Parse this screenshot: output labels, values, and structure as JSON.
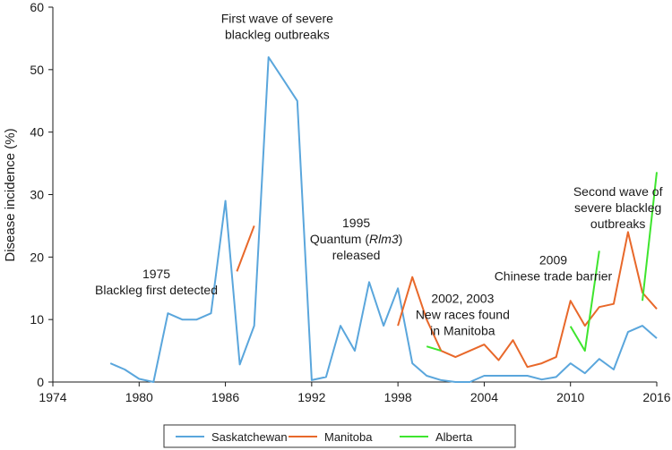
{
  "chart_data": {
    "type": "line",
    "title": "",
    "xlabel": "",
    "ylabel": "Disease incidence (%)",
    "xlim": [
      1974,
      2016
    ],
    "ylim": [
      0,
      60
    ],
    "x_ticks": [
      "1974",
      "1980",
      "1986",
      "1992",
      "1998",
      "2004",
      "2010",
      "2016"
    ],
    "y_ticks": [
      "0",
      "10",
      "20",
      "30",
      "40",
      "50",
      "60"
    ],
    "grid": false,
    "legend_position": "bottom",
    "series": [
      {
        "name": "Saskatchewan",
        "color": "#5aa6dc",
        "points": [
          [
            1978,
            3
          ],
          [
            1979,
            2
          ],
          [
            1980,
            0.5
          ],
          [
            1981,
            0
          ],
          [
            1982,
            11
          ],
          [
            1983,
            10
          ],
          [
            1984,
            10
          ],
          [
            1985,
            11
          ],
          [
            1986,
            29
          ],
          [
            1987,
            2.8
          ],
          [
            1988,
            9
          ],
          [
            1989,
            52
          ],
          [
            1990,
            48.5
          ],
          [
            1991,
            45
          ],
          [
            1992,
            0.3
          ],
          [
            1993,
            0.8
          ],
          [
            1994,
            9
          ],
          [
            1995,
            5
          ],
          [
            1996,
            16
          ],
          [
            1997,
            9
          ],
          [
            1998,
            15
          ],
          [
            1999,
            3
          ],
          [
            2000,
            1
          ],
          [
            2001,
            0.3
          ],
          [
            2002,
            0
          ],
          [
            2003,
            0
          ],
          [
            2004,
            1
          ],
          [
            2005,
            1
          ],
          [
            2006,
            1
          ],
          [
            2007,
            1
          ],
          [
            2008,
            0.4
          ],
          [
            2009,
            0.8
          ],
          [
            2010,
            3
          ],
          [
            2011,
            1.4
          ],
          [
            2012,
            3.7
          ],
          [
            2013,
            2
          ],
          [
            2014,
            8
          ],
          [
            2015,
            9
          ],
          [
            2016,
            7
          ]
        ]
      },
      {
        "name": "Manitoba",
        "color": "#e8682a",
        "segments": [
          [
            [
              1986.8,
              17.7
            ],
            [
              1988,
              25
            ]
          ],
          [
            [
              1998,
              9
            ],
            [
              1999,
              16.8
            ],
            [
              2000,
              10
            ],
            [
              2001,
              5
            ],
            [
              2002,
              4
            ],
            [
              2003,
              5
            ],
            [
              2004,
              6
            ],
            [
              2005,
              3.5
            ],
            [
              2006,
              6.7
            ],
            [
              2007,
              2.4
            ],
            [
              2008,
              3
            ],
            [
              2009,
              4
            ],
            [
              2010,
              13
            ],
            [
              2011,
              9
            ],
            [
              2012,
              12
            ],
            [
              2013,
              12.5
            ],
            [
              2014,
              24
            ],
            [
              2015,
              14.3
            ],
            [
              2016,
              11.7
            ]
          ]
        ]
      },
      {
        "name": "Alberta",
        "color": "#3ee52e",
        "segments": [
          [
            [
              2000,
              5.7
            ],
            [
              2001,
              5
            ]
          ],
          [
            [
              2010,
              8.9
            ],
            [
              2011,
              5
            ],
            [
              2012,
              21
            ]
          ],
          [
            [
              2015,
              13
            ],
            [
              2016,
              33.6
            ]
          ]
        ]
      }
    ],
    "annotations": [
      {
        "lines": [
          "First wave of severe",
          "blackleg outbreaks"
        ],
        "x": 1989.6,
        "y": 57.5
      },
      {
        "lines": [
          "1975",
          "Blackleg first detected"
        ],
        "x": 1981.2,
        "y": 16.6
      },
      {
        "lines": [
          "1995",
          "Quantum (Rlm3)",
          "released"
        ],
        "x": 1995.1,
        "y": 24.8
      },
      {
        "lines": [
          "2002, 2003",
          "New races found",
          "in Manitoba"
        ],
        "x": 2002.5,
        "y": 12.7
      },
      {
        "lines": [
          "2009",
          "Chinese trade barrier"
        ],
        "x": 2008.8,
        "y": 18.8
      },
      {
        "lines": [
          "Second wave of",
          "severe blackleg",
          "outbreaks"
        ],
        "x": 2013.3,
        "y": 29.8
      }
    ]
  }
}
